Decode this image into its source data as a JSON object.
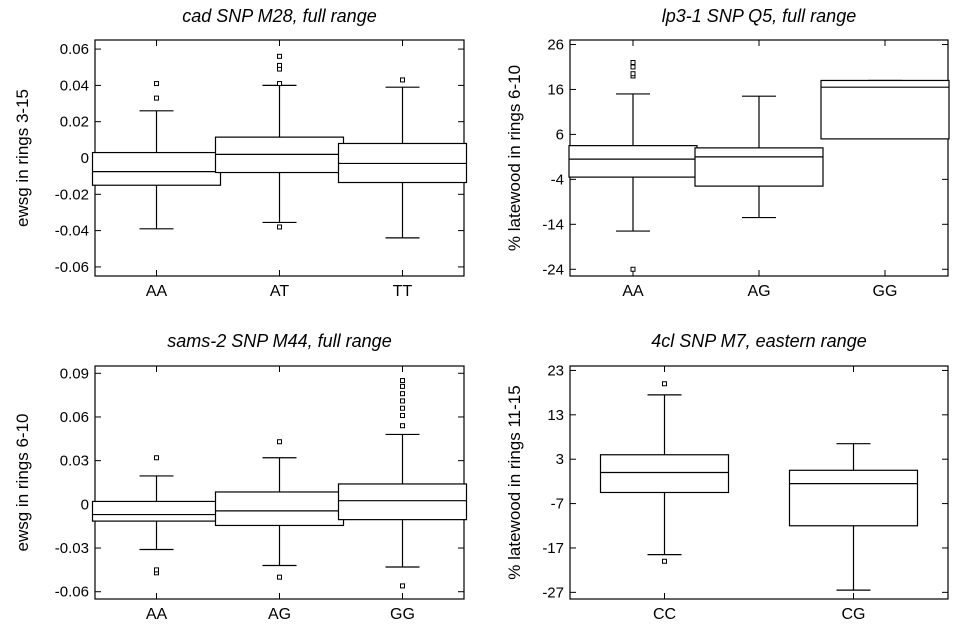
{
  "chart_data": [
    {
      "type": "box",
      "title": "cad SNP M28, full range",
      "ylabel": "ewsg in rings 3-15",
      "ylim": [
        -0.065,
        0.065
      ],
      "yticks": [
        -0.06,
        -0.04,
        -0.02,
        0,
        0.02,
        0.04,
        0.06
      ],
      "ytick_labels": [
        "-0.06",
        "-0.04",
        "-0.02",
        "0",
        "0.02",
        "0.04",
        "0.06"
      ],
      "categories": [
        "AA",
        "AT",
        "TT"
      ],
      "boxes": [
        {
          "whisker_low": -0.039,
          "q1": -0.015,
          "median": -0.0075,
          "q3": 0.003,
          "whisker_high": 0.026,
          "outliers": [
            0.033,
            0.041
          ]
        },
        {
          "whisker_low": -0.0355,
          "q1": -0.008,
          "median": 0.002,
          "q3": 0.0115,
          "whisker_high": 0.04,
          "outliers": [
            -0.038,
            0.041,
            0.049,
            0.051,
            0.056
          ]
        },
        {
          "whisker_low": -0.044,
          "q1": -0.0135,
          "median": -0.003,
          "q3": 0.008,
          "whisker_high": 0.039,
          "outliers": [
            0.043
          ]
        }
      ]
    },
    {
      "type": "box",
      "title": "lp3-1 SNP Q5, full range",
      "ylabel": "% latewood in rings 6-10",
      "ylim": [
        -25.5,
        27
      ],
      "yticks": [
        -24,
        -14,
        -4,
        6,
        16,
        26
      ],
      "ytick_labels": [
        "-24",
        "-14",
        "-4",
        "6",
        "16",
        "26"
      ],
      "categories": [
        "AA",
        "AG",
        "GG"
      ],
      "boxes": [
        {
          "whisker_low": -15.5,
          "q1": -3.5,
          "median": 0.5,
          "q3": 3.5,
          "whisker_high": 15,
          "outliers": [
            -24,
            19,
            19.5,
            21,
            22
          ]
        },
        {
          "whisker_low": -12.5,
          "q1": -5.5,
          "median": 1,
          "q3": 3,
          "whisker_high": 14.5,
          "outliers": []
        },
        {
          "whisker_low": 5,
          "q1": 5,
          "median": 16.5,
          "q3": 18,
          "whisker_high": 18,
          "outliers": []
        }
      ]
    },
    {
      "type": "box",
      "title": "sams-2 SNP M44, full range",
      "ylabel": "ewsg in rings 6-10",
      "ylim": [
        -0.065,
        0.095
      ],
      "yticks": [
        -0.06,
        -0.03,
        0,
        0.03,
        0.06,
        0.09
      ],
      "ytick_labels": [
        "-0.06",
        "-0.03",
        "0",
        "0.03",
        "0.06",
        "0.09"
      ],
      "categories": [
        "AA",
        "AG",
        "GG"
      ],
      "boxes": [
        {
          "whisker_low": -0.031,
          "q1": -0.0115,
          "median": -0.007,
          "q3": 0.002,
          "whisker_high": 0.0195,
          "outliers": [
            -0.047,
            -0.045,
            0.032
          ]
        },
        {
          "whisker_low": -0.042,
          "q1": -0.0145,
          "median": -0.0045,
          "q3": 0.0085,
          "whisker_high": 0.032,
          "outliers": [
            -0.05,
            0.043
          ]
        },
        {
          "whisker_low": -0.043,
          "q1": -0.0105,
          "median": 0.0025,
          "q3": 0.014,
          "whisker_high": 0.048,
          "outliers": [
            -0.056,
            0.054,
            0.061,
            0.066,
            0.071,
            0.076,
            0.081,
            0.085
          ]
        }
      ]
    },
    {
      "type": "box",
      "title": "4cl SNP M7, eastern range",
      "ylabel": "% latewood in rings 11-15",
      "ylim": [
        -28.5,
        24
      ],
      "yticks": [
        -27,
        -17,
        -7,
        3,
        13,
        23
      ],
      "ytick_labels": [
        "-27",
        "-17",
        "-7",
        "3",
        "13",
        "23"
      ],
      "categories": [
        "CC",
        "CG"
      ],
      "boxes": [
        {
          "whisker_low": -18.5,
          "q1": -4.5,
          "median": 0,
          "q3": 4,
          "whisker_high": 17.5,
          "outliers": [
            -20,
            20
          ]
        },
        {
          "whisker_low": -26.5,
          "q1": -12,
          "median": -2.5,
          "q3": 0.5,
          "whisker_high": 6.5,
          "outliers": []
        }
      ]
    }
  ]
}
